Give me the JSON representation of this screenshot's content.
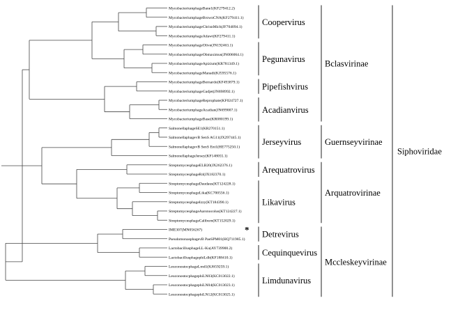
{
  "leaves": [
    "MycobacteriumphageBane1(KF279412.2)",
    "MycobacteriumphageBrownCNA(KF279411.1)",
    "MycobacteriumphageChrisnMich(JF704094.1)",
    "MycobacteriumphageAdawi(KF279411.1)",
    "MycobacteriumphageOlive(JN192463.1)",
    "MycobacteriumphageObmaximus(JN006064.1)",
    "MycobacteriumphageApizium(KR781349.1)",
    "MycobacteriumphageManadi(KJ595576.1)",
    "MycobacteriumphageBernardo(KF493879.1)",
    "MycobacteriumphageGadjet(JN698992.1)",
    "MycobacteriumphageRepropbate(KF024727.1)",
    "MycobacteriumphageAcadian(JN699007.1)",
    "MycobacteriumphageBase(KR080199.1)",
    "SalmonellaphageSE1(KR270151.1)",
    "SalmonellaphagevB SenS AG11(JX297445.1)",
    "SalmonellaphagevB SenS Ent1(HE775250.1)",
    "SalmonellaphageJersey(KF148055.1)",
    "StreptomycesphageELB20(JX262376.1)",
    "StreptomycesphageR4(JX182370.1)",
    "StreptomycesphageDaudaus(KT124228.1)",
    "StreptomycesphageLika(KC700556.1)",
    "StreptomycesphageIzzy(KT184390.1)",
    "StreptomycesphageAaronocolus(KT124227.1)",
    "StreptomycesphageCaliburn(KT152029.1)",
    "IME307(MN056267)",
    "PseudomonasphagevB PaeSPM01(HQ711985.1)",
    "LactobacillusphageLL-Ku(AY739900.2)",
    "LactobacillusphagephiLdb(KF188410.1)",
    "LeuconostocphageLmd1(KJ659259.1)",
    "LeuconostocphagephiLN03(KC013022.1)",
    "LeuconostocphagephiLN04(KC013023.1)",
    "LeuconostocphagephiLN12(KC013025.1)"
  ],
  "highlight": {
    "leaf": "IME307(MN056267)",
    "mark": "*"
  },
  "genera": [
    {
      "name": "Coopervirus",
      "leaves": [
        0,
        3
      ]
    },
    {
      "name": "Pegunavirus",
      "leaves": [
        4,
        7
      ]
    },
    {
      "name": "Pipefishvirus",
      "leaves": [
        8,
        9
      ]
    },
    {
      "name": "Acadianvirus",
      "leaves": [
        10,
        12
      ]
    },
    {
      "name": "Jerseyvirus",
      "leaves": [
        13,
        16
      ]
    },
    {
      "name": "Arequatrovirus",
      "leaves": [
        17,
        18
      ]
    },
    {
      "name": "Likavirus",
      "leaves": [
        19,
        23
      ]
    },
    {
      "name": "Detrevirus",
      "leaves": [
        24,
        25
      ]
    },
    {
      "name": "Cequinquevirus",
      "leaves": [
        26,
        27
      ]
    },
    {
      "name": "Limdunavirus",
      "leaves": [
        28,
        31
      ]
    }
  ],
  "subfamilies": [
    {
      "name": "Bclasvirinae",
      "leaves": [
        0,
        12
      ]
    },
    {
      "name": "Guernseyvirinae",
      "leaves": [
        13,
        16
      ]
    },
    {
      "name": "Arquatrovirinae",
      "leaves": [
        17,
        23
      ]
    },
    {
      "name": "Mccleskeyvirinae",
      "leaves": [
        24,
        31
      ]
    }
  ],
  "family": {
    "name": "Siphoviridae",
    "leaves": [
      0,
      31
    ]
  }
}
